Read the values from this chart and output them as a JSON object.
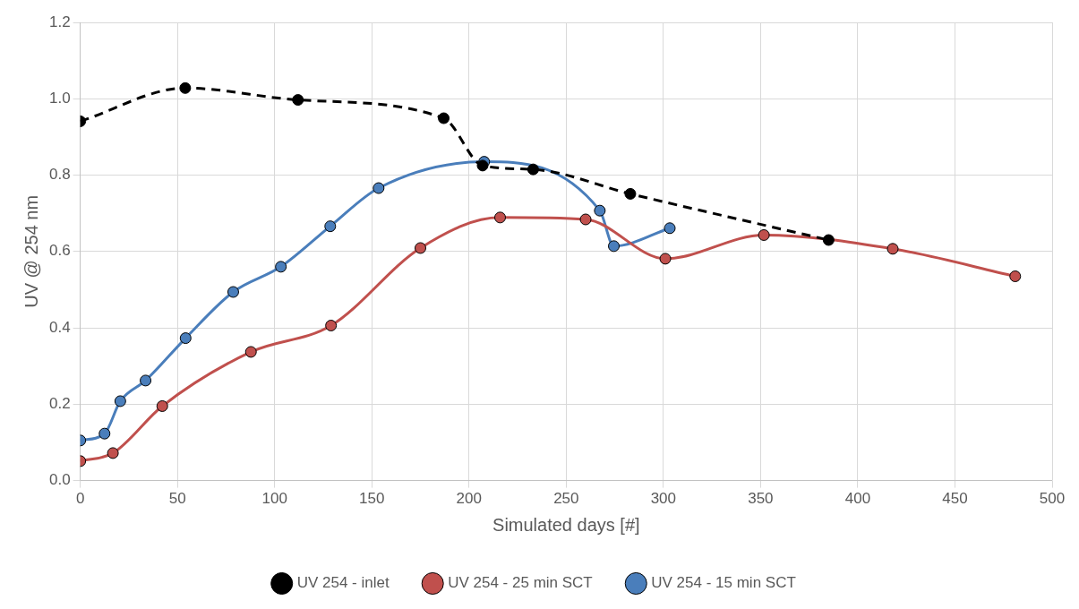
{
  "chart_data": {
    "type": "line",
    "xlabel": "Simulated days [#]",
    "ylabel": "UV @ 254 nm",
    "xlim": [
      0,
      500
    ],
    "xticks": [
      0,
      50,
      100,
      150,
      200,
      250,
      300,
      350,
      400,
      450,
      500
    ],
    "ylim": [
      0,
      1.2
    ],
    "yticks": [
      {
        "value": 0,
        "label": "0.0"
      },
      {
        "value": 0.2,
        "label": "0.2"
      },
      {
        "value": 0.4,
        "label": "0.4"
      },
      {
        "value": 0.6,
        "label": "0.6"
      },
      {
        "value": 0.8,
        "label": "0.8"
      },
      {
        "value": 1,
        "label": "1.0"
      },
      {
        "value": 1.2,
        "label": "1.2"
      }
    ],
    "grid": true,
    "legend": "bottom",
    "marker": "circle",
    "series": [
      {
        "name": "UV 254 - 15 min SCT",
        "color": "#4a7ebb",
        "line_style": "solid",
        "x": [
          0,
          12.5,
          20.6,
          33.6,
          54.2,
          78.7,
          103.2,
          128.6,
          153.5,
          207.8,
          267.3,
          274.5,
          303.3
        ],
        "values": [
          0.105,
          0.123,
          0.208,
          0.262,
          0.373,
          0.494,
          0.56,
          0.666,
          0.766,
          0.835,
          0.707,
          0.614,
          0.661
        ]
      },
      {
        "name": "UV 254 - 25 min SCT",
        "color": "#c0504d",
        "line_style": "solid",
        "x": [
          0,
          16.8,
          42.2,
          87.8,
          129,
          175,
          216,
          260,
          301,
          351.7,
          418,
          481
        ],
        "values": [
          0.051,
          0.072,
          0.195,
          0.337,
          0.406,
          0.609,
          0.689,
          0.684,
          0.581,
          0.643,
          0.607,
          0.535
        ]
      },
      {
        "name": "UV 254 - inlet",
        "color": "#000000",
        "line_style": "dashed",
        "x": [
          0,
          54,
          112,
          187,
          207,
          233,
          283,
          385
        ],
        "values": [
          0.941,
          1.028,
          0.997,
          0.949,
          0.825,
          0.815,
          0.751,
          0.63
        ]
      }
    ]
  }
}
